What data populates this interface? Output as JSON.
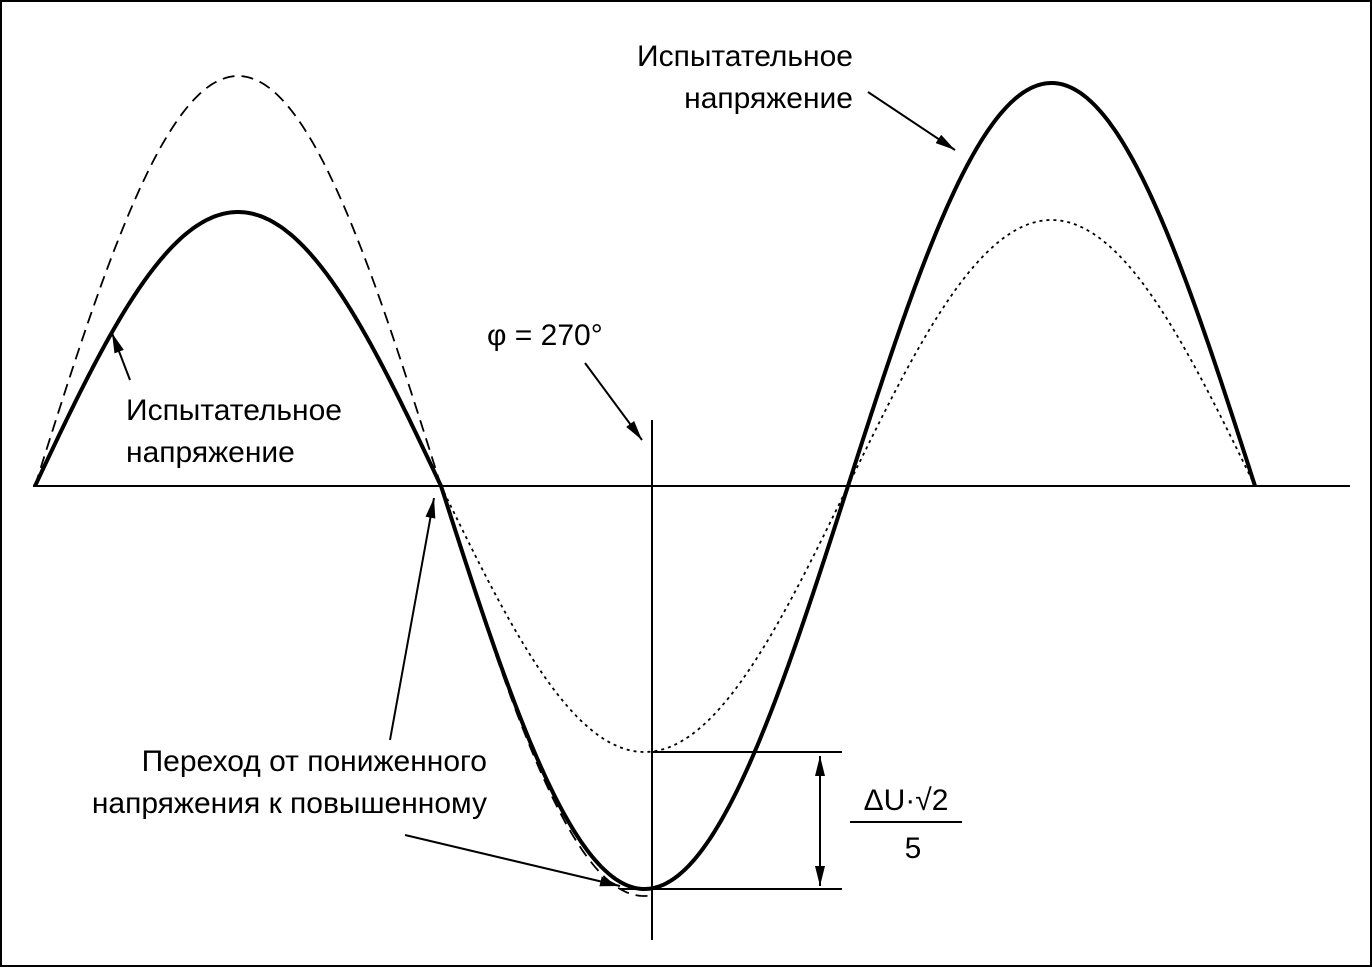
{
  "labels": {
    "test_voltage_right": [
      "Испытательное",
      "напряжение"
    ],
    "test_voltage_left": [
      "Испытательное",
      "напряжение"
    ],
    "phase": "φ = 270°",
    "transition": [
      "Переход от пониженного",
      "напряжения к повышенному"
    ],
    "formula_numerator": "ΔU·√2",
    "formula_denominator": "5"
  }
}
